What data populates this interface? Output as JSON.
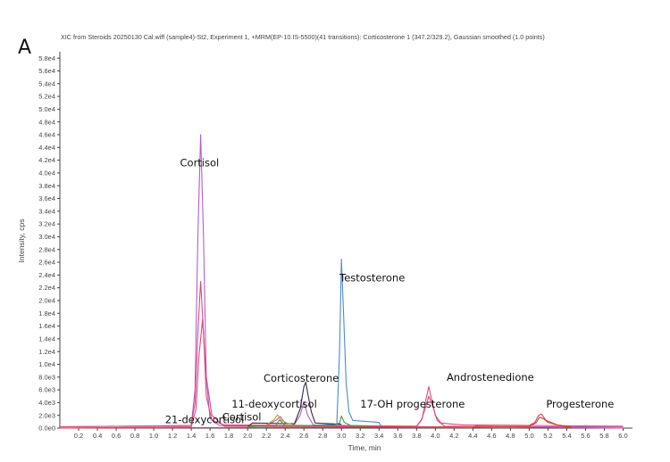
{
  "panel_label": "A",
  "chart_data": {
    "type": "line",
    "title": "XIC from Steroids 20250130 Cal.wiff (sample4)-St2, Experiment 1, +MRM(EP-10.IS-5500)(41 transitions): Corticosterone 1 (347.2/329.2), Gaussian smoothed (1.0 points)",
    "xlabel": "Time, min",
    "ylabel": "Intensity, cps",
    "xlim": [
      0.0,
      6.1
    ],
    "ylim": [
      0,
      59000
    ],
    "x_ticks": [
      0.2,
      0.4,
      0.6,
      0.8,
      1.0,
      1.2,
      1.4,
      1.6,
      1.8,
      2.0,
      2.2,
      2.4,
      2.6,
      2.8,
      3.0,
      3.2,
      3.4,
      3.6,
      3.8,
      4.0,
      4.2,
      4.4,
      4.6,
      4.8,
      5.0,
      5.2,
      5.4,
      5.6,
      5.8,
      6.0
    ],
    "x_tick_labels": [
      "0.2",
      "0.4",
      "0.6",
      "0.8",
      "1.0",
      "1.2",
      "1.4",
      "1.6",
      "1.8",
      "2.0",
      "2.2",
      "2.4",
      "2.6",
      "2.8",
      "3.0",
      "3.2",
      "3.4",
      "3.6",
      "3.8",
      "4.0",
      "4.2",
      "4.4",
      "4.6",
      "4.8",
      "5.0",
      "5.2",
      "5.4",
      "5.6",
      "5.8",
      "6.0"
    ],
    "y_ticks": [
      0,
      2000,
      4000,
      6000,
      8000,
      10000,
      12000,
      14000,
      16000,
      18000,
      20000,
      22000,
      24000,
      26000,
      28000,
      30000,
      32000,
      34000,
      36000,
      38000,
      40000,
      42000,
      44000,
      46000,
      48000,
      50000,
      52000,
      54000,
      56000,
      58000
    ],
    "y_tick_labels": [
      "0.0e0",
      "2.0e3",
      "4.0e3",
      "6.0e3",
      "8.0e3",
      "1.0e4",
      "1.2e4",
      "1.4e4",
      "1.6e4",
      "1.8e4",
      "2.0e4",
      "2.2e4",
      "2.4e4",
      "2.6e4",
      "2.8e4",
      "3.0e4",
      "3.2e4",
      "3.4e4",
      "3.6e4",
      "3.8e4",
      "4.0e4",
      "4.2e4",
      "4.4e4",
      "4.6e4",
      "4.8e4",
      "5.0e4",
      "5.2e4",
      "5.4e4",
      "5.6e4",
      "5.8e4"
    ],
    "series": [
      {
        "color": "#b060c8",
        "x": [
          0.0,
          1.4,
          1.44,
          1.47,
          1.5,
          1.53,
          1.56,
          1.6,
          1.7,
          2.2,
          2.3,
          2.35,
          2.4,
          2.5,
          2.56,
          2.6,
          2.64,
          2.7,
          4.0,
          6.0
        ],
        "y": [
          200,
          400,
          6000,
          30000,
          46000,
          30000,
          8000,
          1500,
          400,
          400,
          1200,
          1800,
          800,
          600,
          2000,
          4200,
          2000,
          500,
          200,
          200
        ]
      },
      {
        "color": "#e04880",
        "x": [
          0.0,
          1.4,
          1.44,
          1.47,
          1.5,
          1.53,
          1.56,
          1.62,
          1.75,
          3.8,
          3.86,
          3.9,
          3.93,
          3.96,
          4.0,
          4.06,
          4.2,
          4.3,
          6.0
        ],
        "y": [
          200,
          400,
          4000,
          15000,
          23000,
          15000,
          5000,
          1200,
          500,
          300,
          1500,
          4500,
          6500,
          4500,
          2000,
          800,
          600,
          500,
          300
        ]
      },
      {
        "color": "#e04880",
        "x": [
          0.0,
          1.4,
          1.45,
          1.48,
          1.52,
          1.56,
          1.62,
          1.75,
          3.8,
          3.85,
          3.9,
          3.93,
          3.97,
          4.02,
          4.1,
          6.0
        ],
        "y": [
          0,
          200,
          3000,
          11000,
          17000,
          8000,
          2000,
          300,
          300,
          1200,
          3500,
          5000,
          3500,
          1200,
          300,
          0
        ]
      },
      {
        "color": "#4a8cd0",
        "x": [
          2.8,
          2.95,
          2.98,
          3.0,
          3.02,
          3.05,
          3.08,
          3.12,
          3.3,
          3.4,
          3.41,
          3.43
        ],
        "y": [
          500,
          600,
          12000,
          26500,
          19000,
          7000,
          2500,
          1200,
          1000,
          900,
          600,
          300
        ]
      },
      {
        "color": "#303048",
        "x": [
          2.0,
          2.05,
          2.5,
          2.56,
          2.6,
          2.62,
          2.64,
          2.68,
          2.72,
          3.0
        ],
        "y": [
          200,
          800,
          700,
          3000,
          6500,
          7200,
          5500,
          2500,
          800,
          600
        ]
      },
      {
        "color": "#c8a020",
        "x": [
          2.2,
          2.28,
          2.32,
          2.36,
          2.42,
          2.5
        ],
        "y": [
          500,
          1300,
          2100,
          1200,
          800,
          500
        ]
      },
      {
        "color": "#40a040",
        "x": [
          2.0,
          2.3,
          2.34,
          2.4,
          2.9,
          2.98,
          3.0,
          3.03,
          3.1,
          3.3
        ],
        "y": [
          200,
          400,
          1300,
          400,
          400,
          800,
          1900,
          900,
          400,
          300
        ]
      },
      {
        "color": "#d84040",
        "x": [
          0.0,
          4.4,
          4.45,
          5.0,
          5.06,
          5.1,
          5.13,
          5.18,
          5.3,
          5.45
        ],
        "y": [
          0,
          200,
          400,
          400,
          900,
          2000,
          2200,
          1200,
          500,
          200
        ]
      },
      {
        "color": "#d84040",
        "x": [
          4.4,
          5.0,
          5.07,
          5.11,
          5.15,
          5.2,
          5.35,
          5.45
        ],
        "y": [
          150,
          250,
          800,
          1700,
          1500,
          900,
          300,
          100
        ]
      }
    ],
    "annotations": [
      {
        "text": "Cortisol",
        "x": 1.28,
        "y": 41000
      },
      {
        "text": "Testosterone",
        "x": 2.98,
        "y": 23000
      },
      {
        "text": "Corticosterone",
        "x": 2.17,
        "y": 7300
      },
      {
        "text": "Androstenedione",
        "x": 4.12,
        "y": 7400
      },
      {
        "text": "11-deoxycortisol",
        "x": 1.83,
        "y": 3200
      },
      {
        "text": "17-OH progesterone",
        "x": 3.2,
        "y": 3200
      },
      {
        "text": "Cortisol",
        "x": 1.73,
        "y": 1200
      },
      {
        "text": "21-dexycortisol",
        "x": 1.12,
        "y": 800
      },
      {
        "text": "Progesterone",
        "x": 5.18,
        "y": 3200
      }
    ]
  }
}
